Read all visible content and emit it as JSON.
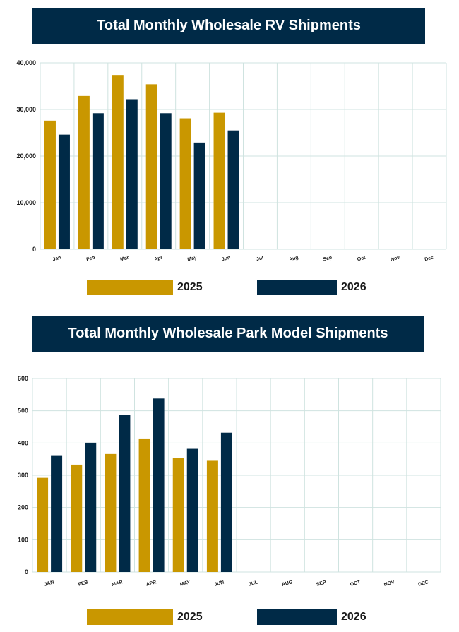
{
  "colors": {
    "series_2025": "#c99700",
    "series_2026": "#002a47",
    "grid": "#cfe3e0",
    "title_bg": "#002a47"
  },
  "chart_data": [
    {
      "type": "bar",
      "title": "Total Monthly Wholesale RV Shipments",
      "categories": [
        "Jan",
        "Feb",
        "Mar",
        "Apr",
        "May",
        "Jun",
        "Jul",
        "Aug",
        "Sep",
        "Oct",
        "Nov",
        "Dec"
      ],
      "series": [
        {
          "name": "2025",
          "values": [
            27600,
            32900,
            37400,
            35400,
            28100,
            29300,
            null,
            null,
            null,
            null,
            null,
            null
          ]
        },
        {
          "name": "2026",
          "values": [
            24600,
            29200,
            32200,
            29200,
            22900,
            25500,
            null,
            null,
            null,
            null,
            null,
            null
          ]
        }
      ],
      "yticks": [
        "0",
        "10,000",
        "20,000",
        "30,000",
        "40,000"
      ],
      "ylim": [
        0,
        40000
      ],
      "grid": true,
      "legend": "bottom"
    },
    {
      "type": "bar",
      "title": "Total Monthly Wholesale Park Model Shipments",
      "categories": [
        "JAN",
        "FEB",
        "MAR",
        "APR",
        "MAY",
        "JUN",
        "JUL",
        "AUG",
        "SEP",
        "OCT",
        "NOV",
        "DEC"
      ],
      "series": [
        {
          "name": "2025",
          "values": [
            292,
            333,
            366,
            414,
            353,
            345,
            null,
            null,
            null,
            null,
            null,
            null
          ]
        },
        {
          "name": "2026",
          "values": [
            360,
            401,
            488,
            538,
            382,
            432,
            null,
            null,
            null,
            null,
            null,
            null
          ]
        }
      ],
      "yticks": [
        "0",
        "100",
        "200",
        "300",
        "400",
        "500",
        "600"
      ],
      "ylim": [
        0,
        600
      ],
      "grid": true,
      "legend": "bottom"
    }
  ]
}
